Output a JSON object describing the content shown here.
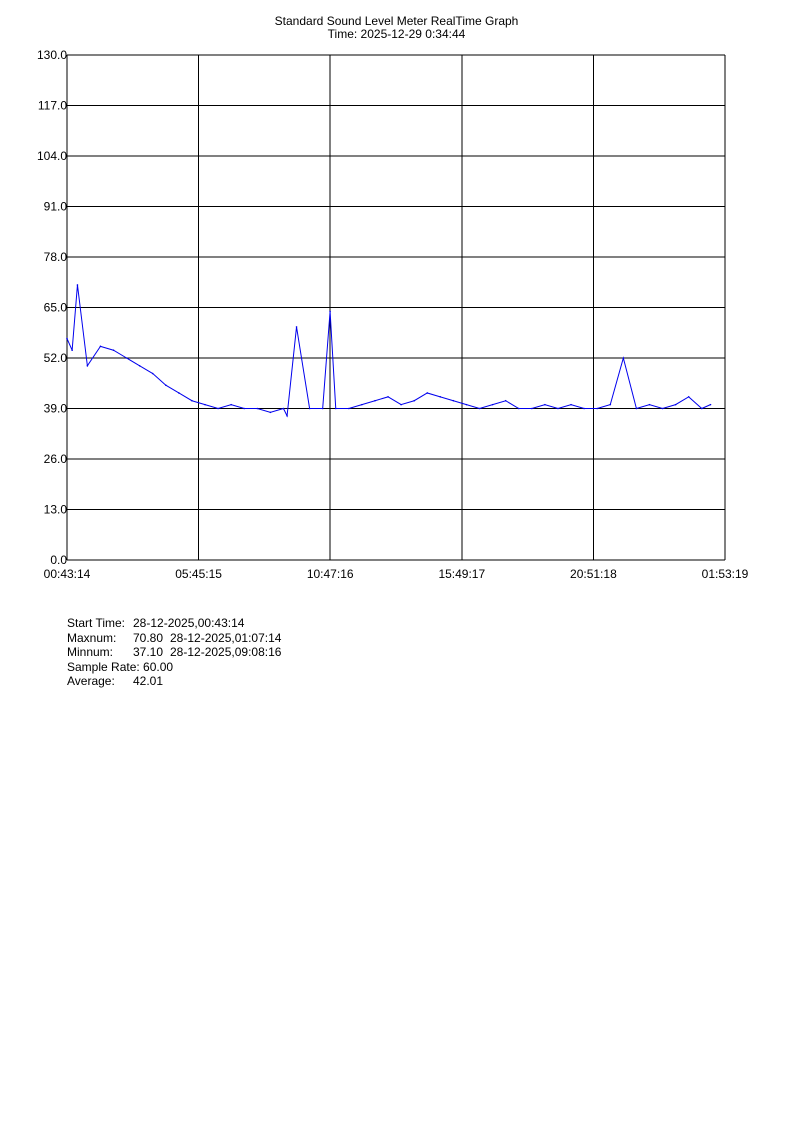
{
  "chart_data": {
    "type": "line",
    "title": "Standard Sound Level Meter RealTime Graph",
    "subtitle": "Time: 2025-12-29  0:34:44",
    "ylim": [
      0,
      130
    ],
    "y_ticks": [
      "0.0",
      "13.0",
      "26.0",
      "39.0",
      "52.0",
      "65.0",
      "78.0",
      "91.0",
      "104.0",
      "117.0",
      "130.0"
    ],
    "x_ticks": [
      "00:43:14",
      "05:45:15",
      "10:47:16",
      "15:49:17",
      "20:51:18",
      "01:53:19"
    ],
    "grid": true,
    "series": [
      {
        "color": "#0000ee",
        "x": [
          "00:43:14",
          "00:55",
          "01:07:14",
          "01:30",
          "02:00",
          "02:30",
          "03:00",
          "03:30",
          "04:00",
          "04:30",
          "05:00",
          "05:30",
          "06:00",
          "06:30",
          "07:00",
          "07:30",
          "08:00",
          "08:30",
          "09:00",
          "09:08:16",
          "09:30",
          "10:00",
          "10:30",
          "10:47",
          "11:00",
          "11:30",
          "12:00",
          "12:30",
          "13:00",
          "13:30",
          "14:00",
          "14:30",
          "15:00",
          "15:30",
          "16:00",
          "16:30",
          "17:00",
          "17:30",
          "18:00",
          "18:30",
          "19:00",
          "19:30",
          "20:00",
          "20:30",
          "21:00",
          "21:30",
          "22:00",
          "22:30",
          "23:00",
          "23:30",
          "00:00",
          "00:30",
          "01:00",
          "01:20"
        ],
        "values": [
          57,
          54,
          70.8,
          50,
          55,
          54,
          52,
          50,
          48,
          45,
          43,
          41,
          40,
          39,
          40,
          39,
          39,
          38,
          39,
          37.1,
          60,
          39,
          39,
          64,
          39,
          39,
          40,
          41,
          42,
          40,
          41,
          43,
          42,
          41,
          40,
          39,
          40,
          41,
          39,
          39,
          40,
          39,
          40,
          39,
          39,
          40,
          52,
          39,
          40,
          39,
          40,
          42,
          39,
          40
        ]
      }
    ]
  },
  "stats": {
    "start_label": "Start Time:",
    "start_value": "28-12-2025,00:43:14",
    "max_label": "Maxnum:",
    "max_value": "70.80",
    "max_time": "28-12-2025,01:07:14",
    "min_label": "Minnum:",
    "min_value": "37.10",
    "min_time": "28-12-2025,09:08:16",
    "rate_label": "Sample Rate:",
    "rate_value": "60.00",
    "avg_label": "Average:",
    "avg_value": "42.01"
  }
}
